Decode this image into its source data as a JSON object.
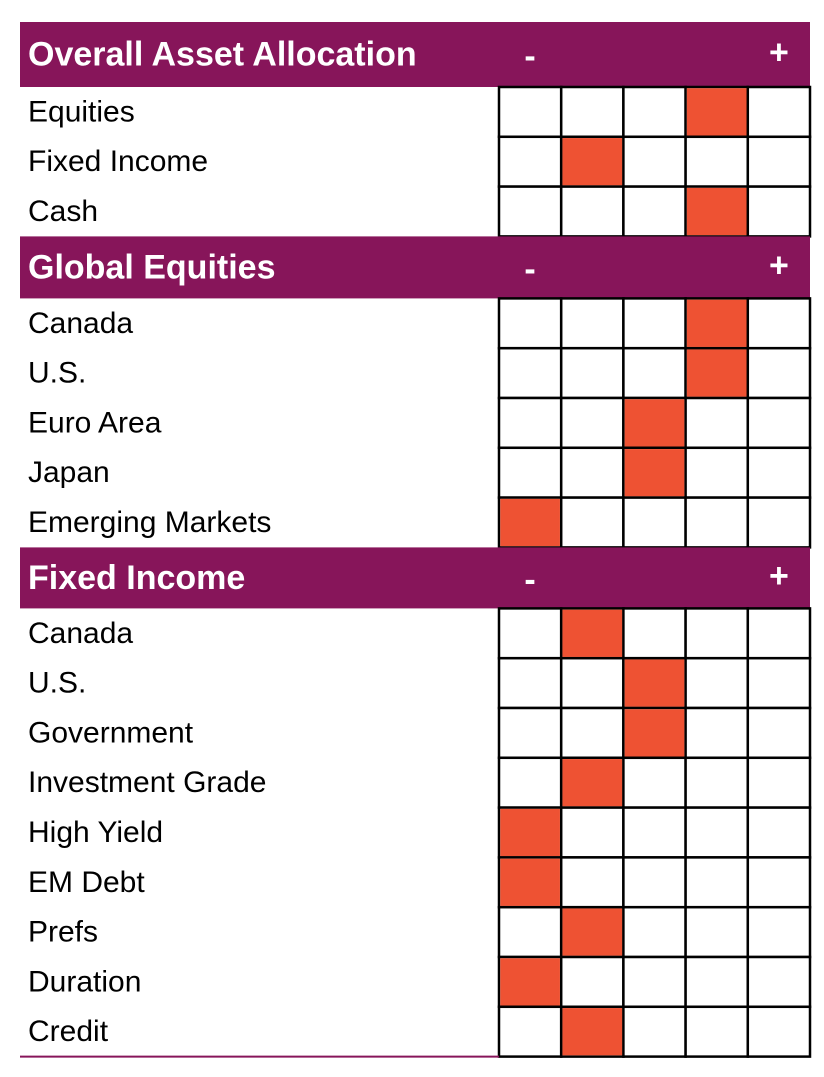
{
  "sections": [
    {
      "title": "Overall Asset Allocation",
      "minus": "-",
      "plus": "+",
      "rows": [
        {
          "label": "Equities",
          "position": 4
        },
        {
          "label": "Fixed Income",
          "position": 2
        },
        {
          "label": "Cash",
          "position": 4
        }
      ]
    },
    {
      "title": "Global Equities",
      "minus": "-",
      "plus": "+",
      "rows": [
        {
          "label": "Canada",
          "position": 4
        },
        {
          "label": "U.S.",
          "position": 4
        },
        {
          "label": "Euro Area",
          "position": 3
        },
        {
          "label": "Japan",
          "position": 3
        },
        {
          "label": "Emerging Markets",
          "position": 1
        }
      ]
    },
    {
      "title": "Fixed Income",
      "minus": "-",
      "plus": "+",
      "rows": [
        {
          "label": "Canada",
          "position": 2
        },
        {
          "label": "U.S.",
          "position": 3
        },
        {
          "label": "Government",
          "position": 3
        },
        {
          "label": "Investment Grade",
          "position": 2
        },
        {
          "label": "High Yield",
          "position": 1
        },
        {
          "label": "EM Debt",
          "position": 1
        },
        {
          "label": "Prefs",
          "position": 2
        },
        {
          "label": "Duration",
          "position": 1
        },
        {
          "label": "Credit",
          "position": 2
        }
      ]
    }
  ]
}
